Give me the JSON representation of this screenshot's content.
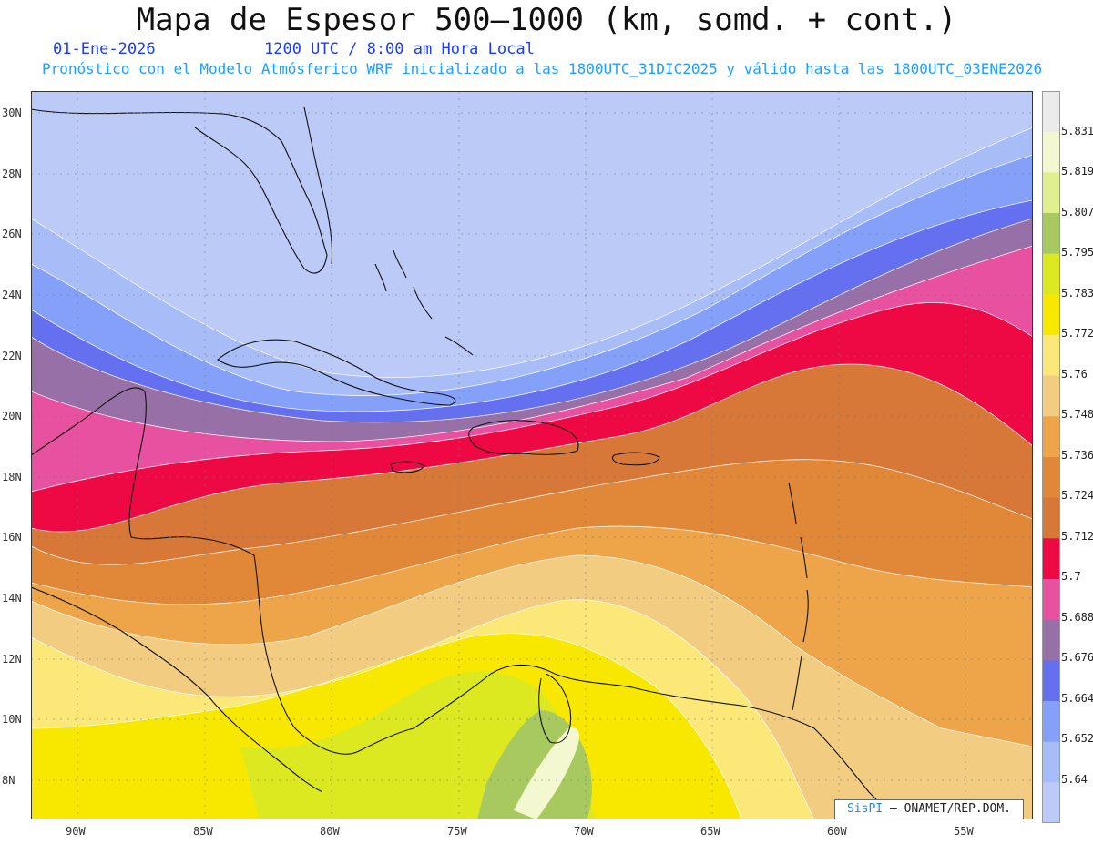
{
  "title": "Mapa de Espesor 500–1000 (km, somd. + cont.)",
  "date": "01-Ene-2026",
  "time": "1200 UTC / 8:00 am Hora Local",
  "description": "Pronóstico con el Modelo Atmósferico WRF inicializado a las 1800UTC_31DIC2025 y válido hasta las  1800UTC_03ENE2026",
  "credit_brand": "SisPI",
  "credit_text": "– ONAMET/REP.DOM.",
  "lat_labels": [
    "30N",
    "28N",
    "26N",
    "24N",
    "22N",
    "20N",
    "18N",
    "16N",
    "14N",
    "12N",
    "10N",
    "8N"
  ],
  "lon_labels": [
    "90W",
    "85W",
    "80W",
    "75W",
    "70W",
    "65W",
    "60W",
    "55W"
  ],
  "colorbar": {
    "labels": [
      "5.831",
      "5.819",
      "5.807",
      "5.795",
      "5.783",
      "5.772",
      "5.76",
      "5.748",
      "5.736",
      "5.724",
      "5.712",
      "5.7",
      "5.688",
      "5.676",
      "5.664",
      "5.652",
      "5.64"
    ],
    "colors": [
      "#ebebeb",
      "#f4f8d0",
      "#e0f090",
      "#a8c860",
      "#dce820",
      "#f8e800",
      "#fce878",
      "#f2cc80",
      "#eea448",
      "#e08838",
      "#d87838",
      "#ee0844",
      "#e850a0",
      "#9870a8",
      "#6470f0",
      "#84a0f8",
      "#a8bcf8",
      "#bccaf8"
    ]
  },
  "colors": {
    "title": "#111111",
    "date_time": "#1a3cff",
    "description": "#1ea0ff"
  }
}
